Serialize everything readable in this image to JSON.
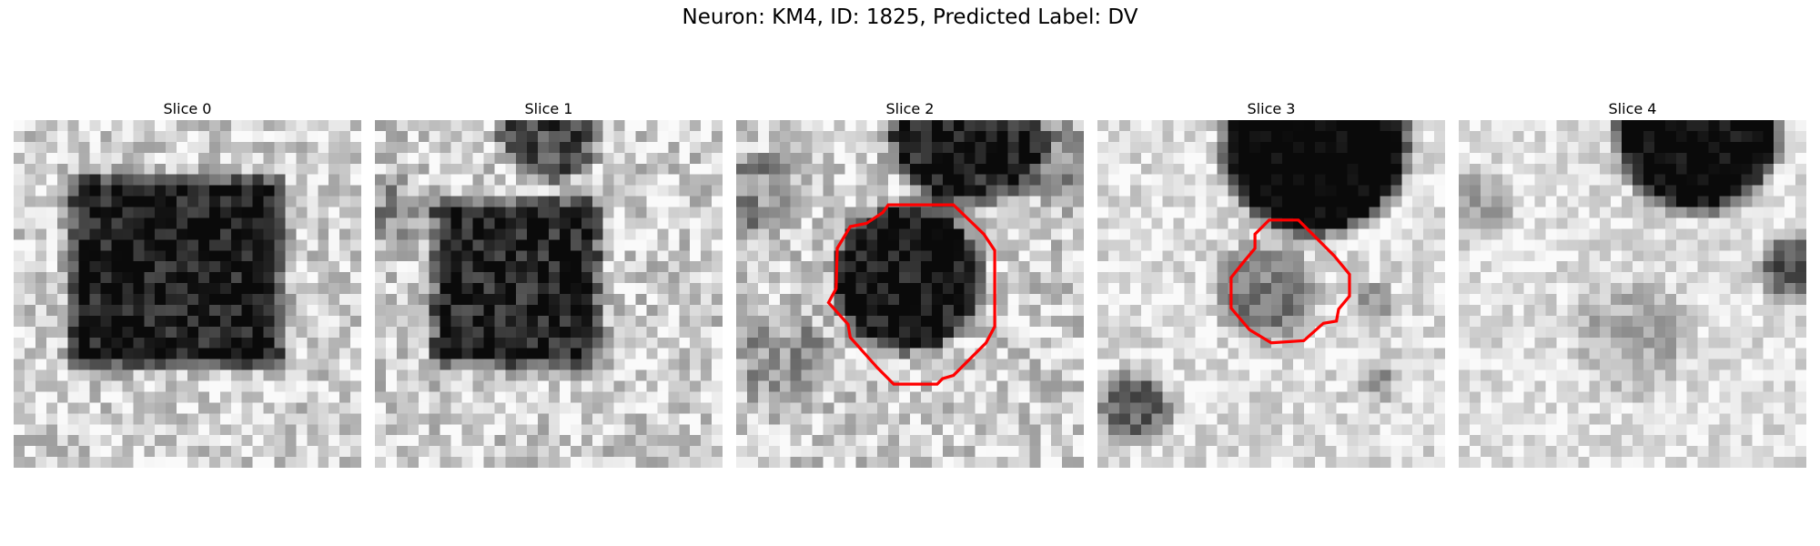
{
  "figure": {
    "title": "Neuron: KM4, ID: 1825, Predicted Label: DV",
    "outline_color": "#ff0000"
  },
  "panels": [
    {
      "title": "Slice 0",
      "has_outline": false
    },
    {
      "title": "Slice 1",
      "has_outline": false
    },
    {
      "title": "Slice 2",
      "has_outline": true
    },
    {
      "title": "Slice 3",
      "has_outline": true
    },
    {
      "title": "Slice 4",
      "has_outline": false
    }
  ]
}
